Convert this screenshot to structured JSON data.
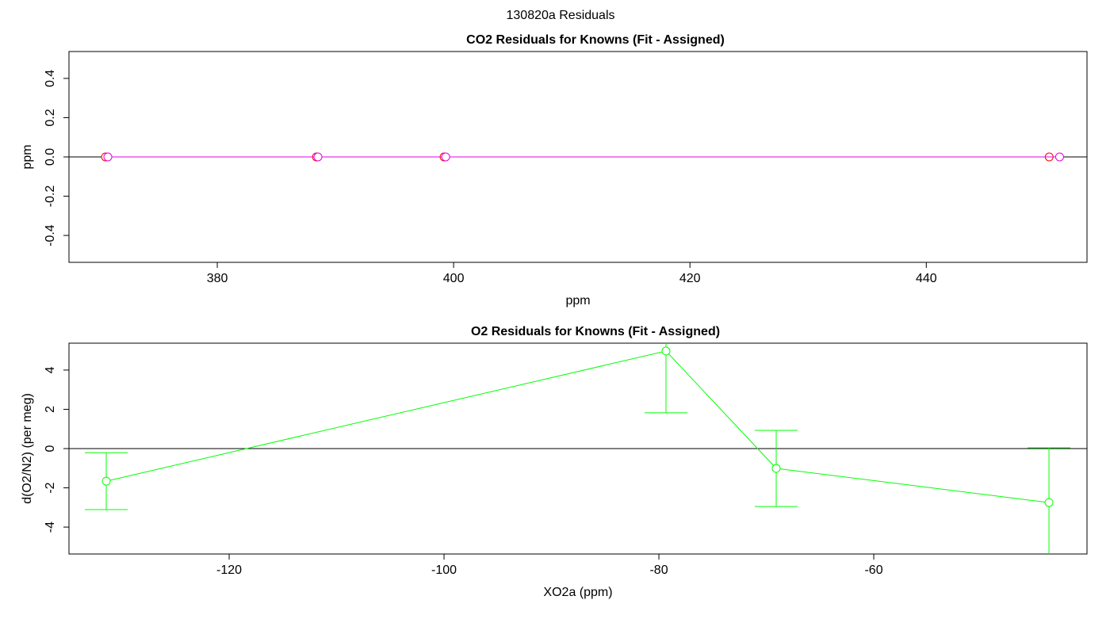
{
  "title": "130820a  Residuals",
  "chart_data": [
    {
      "type": "line",
      "title": "CO2 Residuals for Knowns (Fit - Assigned)",
      "xlabel": "ppm",
      "ylabel": "ppm",
      "xlim": [
        367.45,
        453.6
      ],
      "ylim": [
        -0.537,
        0.537
      ],
      "xticks": [
        380,
        400,
        420,
        440
      ],
      "yticks": [
        -0.4,
        -0.2,
        {
          "value": 0,
          "label": "0.0"
        },
        0.2,
        0.4
      ],
      "reference_line": 0,
      "series": [
        {
          "color": "#ff0000",
          "x": [
            370.54,
            388.39,
            399.19,
            450.4
          ],
          "values": [
            0,
            0,
            0,
            0
          ]
        },
        {
          "color": "#e000e0",
          "x": [
            370.74,
            388.52,
            399.33,
            451.28
          ],
          "values": [
            0,
            0,
            0,
            0
          ]
        }
      ]
    },
    {
      "type": "line",
      "title": "O2 Residuals for Knowns (Fit - Assigned)",
      "xlabel": "XO2a (ppm)",
      "ylabel": "d(O2/N2) (per meg)",
      "xlim": [
        -134.91,
        -40.15
      ],
      "ylim": [
        -5.37,
        5.37
      ],
      "xticks": [
        -120,
        -100,
        -80,
        -60
      ],
      "yticks": [
        -4,
        -2,
        0,
        2,
        4
      ],
      "reference_line": 0,
      "series": [
        {
          "color": "#00ff00",
          "x": [
            -131.44,
            -79.34,
            -69.08,
            -43.69
          ],
          "values": [
            -1.66,
            4.97,
            -1.01,
            -2.75
          ],
          "errors": [
            1.45,
            3.15,
            1.94,
            2.79
          ]
        }
      ]
    }
  ]
}
